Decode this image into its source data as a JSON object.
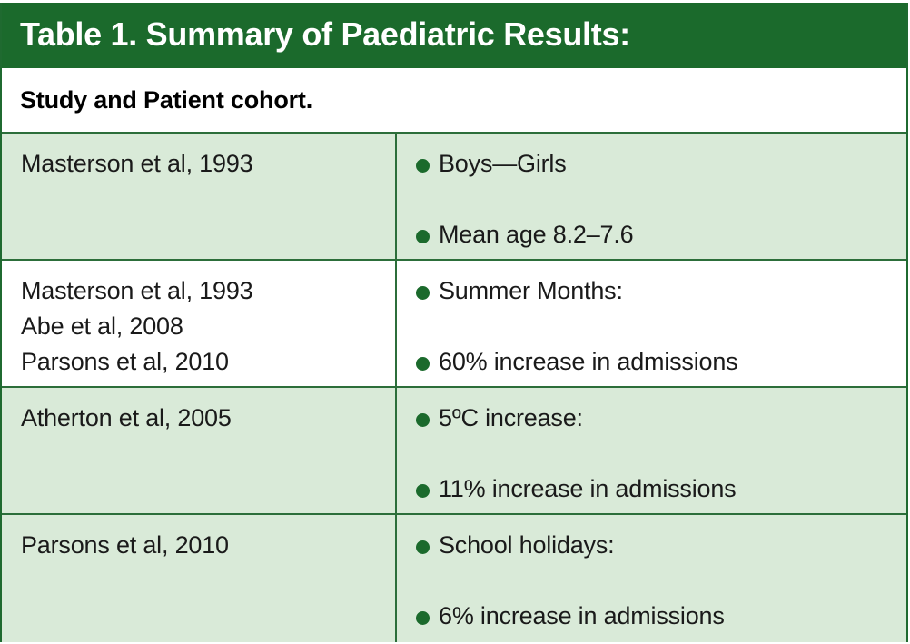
{
  "title": "Table 1. Summary of Paediatric Results:",
  "subtitle": "Study and Patient cohort.",
  "colors": {
    "header_bg": "#1b6a2c",
    "row_shaded": "#d9ead8",
    "row_plain": "#ffffff",
    "bullet": "#1b6a2c"
  },
  "bullet_icon": "filled-circle",
  "rows": [
    {
      "studies": [
        "Masterson et al, 1993"
      ],
      "findings": [
        "Boys—Girls",
        "Mean age 8.2–7.6"
      ]
    },
    {
      "studies": [
        "Masterson et al, 1993",
        "Abe et al, 2008",
        "Parsons et al, 2010"
      ],
      "findings": [
        "Summer Months:",
        "60% increase in admissions"
      ]
    },
    {
      "studies": [
        "Atherton et al, 2005"
      ],
      "findings": [
        "5ºC increase:",
        "11% increase in admissions"
      ]
    },
    {
      "studies": [
        "Parsons et al, 2010"
      ],
      "findings": [
        "School holidays:",
        "6% increase in admissions"
      ]
    }
  ]
}
